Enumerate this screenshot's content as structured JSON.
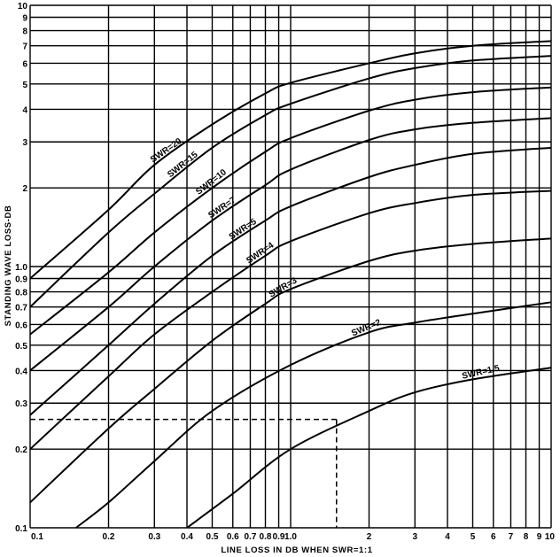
{
  "chart_data": {
    "type": "line",
    "title": "",
    "xlabel": "LINE LOSS IN DB WHEN SWR=1:1",
    "ylabel": "STANDING WAVE LOSS-DB",
    "x_scale": "log",
    "y_scale": "log",
    "xlim": [
      0.1,
      10
    ],
    "ylim": [
      0.1,
      10
    ],
    "grid": true,
    "x_ticks": [
      {
        "v": 0.1,
        "label": "0.1"
      },
      {
        "v": 0.2,
        "label": "0.2"
      },
      {
        "v": 0.3,
        "label": "0.3"
      },
      {
        "v": 0.4,
        "label": "0.4"
      },
      {
        "v": 0.5,
        "label": "0.5"
      },
      {
        "v": 0.6,
        "label": "0.6"
      },
      {
        "v": 0.7,
        "label": "0.7"
      },
      {
        "v": 0.8,
        "label": "0.8"
      },
      {
        "v": 0.9,
        "label": "0.9"
      },
      {
        "v": 1.0,
        "label": "1.0"
      },
      {
        "v": 2,
        "label": "2"
      },
      {
        "v": 3,
        "label": "3"
      },
      {
        "v": 4,
        "label": "4"
      },
      {
        "v": 5,
        "label": "5"
      },
      {
        "v": 6,
        "label": "6"
      },
      {
        "v": 7,
        "label": "7"
      },
      {
        "v": 8,
        "label": "8"
      },
      {
        "v": 9,
        "label": "9"
      },
      {
        "v": 10,
        "label": "10"
      }
    ],
    "y_ticks": [
      {
        "v": 0.1,
        "label": "0.1"
      },
      {
        "v": 0.2,
        "label": "0.2"
      },
      {
        "v": 0.3,
        "label": "0.3"
      },
      {
        "v": 0.4,
        "label": "0.4"
      },
      {
        "v": 0.5,
        "label": "0.5"
      },
      {
        "v": 0.6,
        "label": "0.6"
      },
      {
        "v": 0.7,
        "label": "0.7"
      },
      {
        "v": 0.8,
        "label": "0.8"
      },
      {
        "v": 0.9,
        "label": "0.9"
      },
      {
        "v": 1.0,
        "label": "1.0"
      },
      {
        "v": 2,
        "label": "2"
      },
      {
        "v": 3,
        "label": "3"
      },
      {
        "v": 4,
        "label": "4"
      },
      {
        "v": 5,
        "label": "5"
      },
      {
        "v": 6,
        "label": "6"
      },
      {
        "v": 7,
        "label": "7"
      },
      {
        "v": 8,
        "label": "8"
      },
      {
        "v": 9,
        "label": "9"
      },
      {
        "v": 10,
        "label": "10"
      }
    ],
    "series": [
      {
        "name": "SWR=20",
        "label": "SWR=20",
        "label_at": 0.3,
        "points": [
          [
            0.1,
            0.9
          ],
          [
            0.2,
            1.65
          ],
          [
            0.3,
            2.45
          ],
          [
            0.5,
            3.5
          ],
          [
            0.8,
            4.6
          ],
          [
            1.0,
            5.05
          ],
          [
            2,
            6.0
          ],
          [
            3,
            6.55
          ],
          [
            5,
            7.0
          ],
          [
            10,
            7.3
          ]
        ]
      },
      {
        "name": "SWR=15",
        "label": "SWR=15",
        "label_at": 0.35,
        "points": [
          [
            0.1,
            0.7
          ],
          [
            0.2,
            1.35
          ],
          [
            0.3,
            1.9
          ],
          [
            0.5,
            2.85
          ],
          [
            0.8,
            3.8
          ],
          [
            1.0,
            4.2
          ],
          [
            2,
            5.25
          ],
          [
            3,
            5.75
          ],
          [
            5,
            6.15
          ],
          [
            10,
            6.4
          ]
        ]
      },
      {
        "name": "SWR=10",
        "label": "SWR=10",
        "label_at": 0.45,
        "points": [
          [
            0.1,
            0.55
          ],
          [
            0.2,
            0.95
          ],
          [
            0.3,
            1.35
          ],
          [
            0.5,
            2.0
          ],
          [
            0.8,
            2.75
          ],
          [
            1.0,
            3.1
          ],
          [
            2,
            3.95
          ],
          [
            3,
            4.35
          ],
          [
            5,
            4.65
          ],
          [
            10,
            4.85
          ]
        ]
      },
      {
        "name": "SWR=7",
        "label": "SWR=7",
        "label_at": 0.5,
        "points": [
          [
            0.1,
            0.4
          ],
          [
            0.2,
            0.7
          ],
          [
            0.3,
            1.0
          ],
          [
            0.5,
            1.5
          ],
          [
            0.8,
            2.05
          ],
          [
            1.0,
            2.35
          ],
          [
            2,
            3.05
          ],
          [
            3,
            3.35
          ],
          [
            5,
            3.55
          ],
          [
            10,
            3.7
          ]
        ]
      },
      {
        "name": "SWR=5",
        "label": "SWR=5",
        "label_at": 0.6,
        "points": [
          [
            0.1,
            0.27
          ],
          [
            0.2,
            0.5
          ],
          [
            0.3,
            0.72
          ],
          [
            0.5,
            1.1
          ],
          [
            0.8,
            1.5
          ],
          [
            1.0,
            1.7
          ],
          [
            2,
            2.2
          ],
          [
            3,
            2.45
          ],
          [
            5,
            2.7
          ],
          [
            10,
            2.85
          ]
        ]
      },
      {
        "name": "SWR=4",
        "label": "SWR=4",
        "label_at": 0.7,
        "points": [
          [
            0.1,
            0.2
          ],
          [
            0.2,
            0.38
          ],
          [
            0.3,
            0.55
          ],
          [
            0.5,
            0.8
          ],
          [
            0.8,
            1.1
          ],
          [
            1.0,
            1.25
          ],
          [
            2,
            1.6
          ],
          [
            3,
            1.75
          ],
          [
            5,
            1.88
          ],
          [
            10,
            1.95
          ]
        ]
      },
      {
        "name": "SWR=3",
        "label": "SWR=3",
        "label_at": 0.85,
        "points": [
          [
            0.1,
            0.125
          ],
          [
            0.2,
            0.24
          ],
          [
            0.3,
            0.34
          ],
          [
            0.5,
            0.52
          ],
          [
            0.8,
            0.72
          ],
          [
            1.0,
            0.82
          ],
          [
            2,
            1.05
          ],
          [
            3,
            1.15
          ],
          [
            5,
            1.22
          ],
          [
            10,
            1.28
          ]
        ]
      },
      {
        "name": "SWR=2",
        "label": "SWR=2",
        "label_at": 1.75,
        "points": [
          [
            0.15,
            0.1
          ],
          [
            0.2,
            0.125
          ],
          [
            0.3,
            0.18
          ],
          [
            0.5,
            0.28
          ],
          [
            1.0,
            0.42
          ],
          [
            2,
            0.56
          ],
          [
            3,
            0.61
          ],
          [
            5,
            0.66
          ],
          [
            10,
            0.73
          ]
        ]
      },
      {
        "name": "SWR=1.5",
        "label": "SWR=1.5",
        "label_at": 4.6,
        "points": [
          [
            0.4,
            0.1
          ],
          [
            0.6,
            0.135
          ],
          [
            1.0,
            0.2
          ],
          [
            2,
            0.28
          ],
          [
            3,
            0.33
          ],
          [
            5,
            0.37
          ],
          [
            10,
            0.41
          ]
        ]
      }
    ],
    "reference_line": {
      "x": 1.5,
      "y": 0.26
    }
  }
}
